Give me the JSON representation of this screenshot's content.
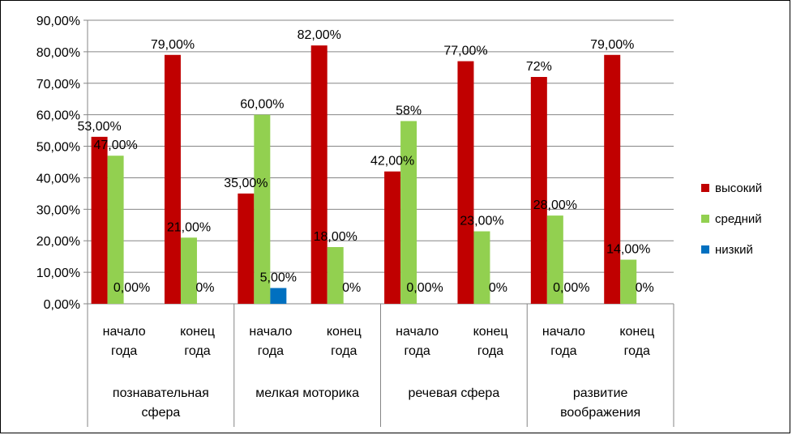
{
  "chart_data": {
    "type": "bar",
    "yticks": [
      "0,00%",
      "10,00%",
      "20,00%",
      "30,00%",
      "40,00%",
      "50,00%",
      "60,00%",
      "70,00%",
      "80,00%",
      "90,00%"
    ],
    "ylim": [
      0,
      90
    ],
    "grid": true,
    "legend_position": "right",
    "groups": [
      {
        "label": "познавательная сфера",
        "lines": [
          "познавательная",
          "сфера"
        ]
      },
      {
        "label": "мелкая моторика",
        "lines": [
          "мелкая моторика"
        ]
      },
      {
        "label": "речевая сфера",
        "lines": [
          "речевая сфера"
        ]
      },
      {
        "label": "развитие воображения",
        "lines": [
          "развитие",
          "воображения"
        ]
      }
    ],
    "categories": [
      {
        "group": 0,
        "lines": [
          "начало",
          "года"
        ]
      },
      {
        "group": 0,
        "lines": [
          "конец",
          "года"
        ]
      },
      {
        "group": 1,
        "lines": [
          "начало",
          "года"
        ]
      },
      {
        "group": 1,
        "lines": [
          "конец",
          "года"
        ]
      },
      {
        "group": 2,
        "lines": [
          "начало",
          "года"
        ]
      },
      {
        "group": 2,
        "lines": [
          "конец",
          "года"
        ]
      },
      {
        "group": 3,
        "lines": [
          "начало",
          "года"
        ]
      },
      {
        "group": 3,
        "lines": [
          "конец",
          "года"
        ]
      }
    ],
    "series": [
      {
        "name": "высокий",
        "color": "#C00000",
        "values": [
          53,
          79,
          35,
          82,
          42,
          77,
          72,
          79
        ],
        "labels": [
          "53,00%",
          "79,00%",
          "35,00%",
          "82,00%",
          "42,00%",
          "77,00%",
          "72%",
          "79,00%"
        ]
      },
      {
        "name": "средний",
        "color": "#92D050",
        "values": [
          47,
          21,
          60,
          18,
          58,
          23,
          28,
          14
        ],
        "labels": [
          "47,00%",
          "21,00%",
          "60,00%",
          "18,00%",
          "58%",
          "23,00%",
          "28,00%",
          "14,00%"
        ]
      },
      {
        "name": "низкий",
        "color": "#0070C0",
        "values": [
          0,
          0,
          5,
          0,
          0,
          0,
          0,
          0
        ],
        "labels": [
          "0,00%",
          "0%",
          "5,00%",
          "0%",
          "0,00%",
          "0%",
          "0,00%",
          "0%"
        ]
      }
    ]
  }
}
